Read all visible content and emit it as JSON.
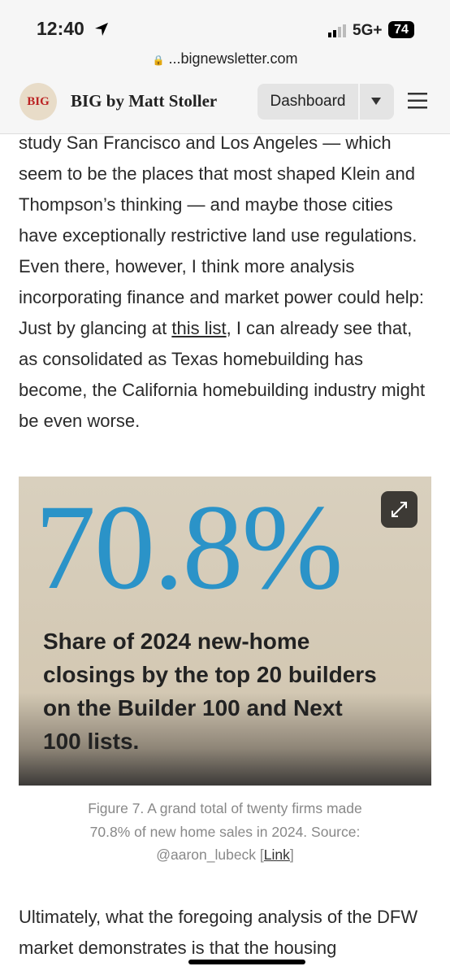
{
  "status_bar": {
    "time": "12:40",
    "network": "5G+",
    "battery": "74"
  },
  "address_bar": {
    "url": "...bignewsletter.com"
  },
  "header": {
    "logo": "BIG",
    "site_name": "BIG by Matt Stoller",
    "button": "Dashboard"
  },
  "article": {
    "paragraph_1": {
      "before_link": "study San Francisco and Los Angeles — which seem to be the places that most shaped Klein and Thompson’s thinking — and maybe those cities have exceptionally restrictive land use regulations. Even there, however, I think more analysis incorporating finance and market power could help: Just by glancing at ",
      "link": "this list",
      "after_link": ", I can already see that, as consolidated as Texas homebuilding has become, the California homebuilding industry might be even worse."
    },
    "figure": {
      "big_number": "70.8%",
      "image_text": "Share of 2024 new-home closings by the top 20 builders on the Builder 100 and Next 100 lists.",
      "caption_before_link": "Figure 7. A grand total of twenty firms made 70.8% of new home sales in 2024. Source: @aaron_lubeck [",
      "caption_link": "Link",
      "caption_after_link": "]"
    },
    "paragraph_2": "Ultimately, what the foregoing analysis of the DFW market demonstrates is that the housing"
  }
}
